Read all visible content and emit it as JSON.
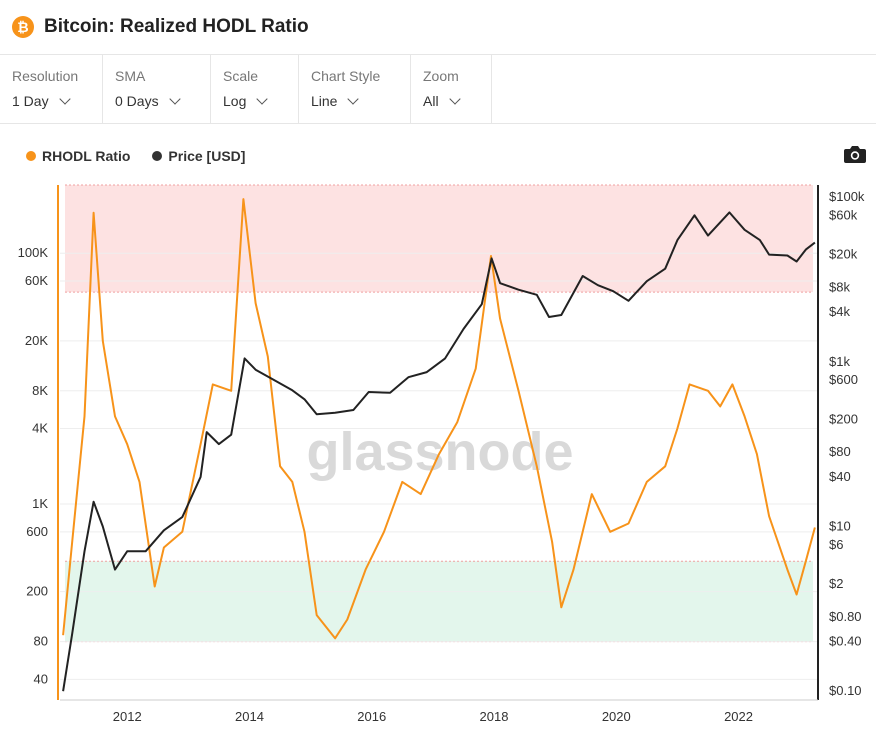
{
  "header": {
    "logo_glyph": "₿",
    "title": "Bitcoin: Realized HODL Ratio"
  },
  "controls": [
    {
      "label": "Resolution",
      "value": "1 Day"
    },
    {
      "label": "SMA",
      "value": "0 Days"
    },
    {
      "label": "Scale",
      "value": "Log"
    },
    {
      "label": "Chart Style",
      "value": "Line"
    },
    {
      "label": "Zoom",
      "value": "All"
    }
  ],
  "legend": [
    {
      "name": "RHODL Ratio",
      "color": "#f7931a"
    },
    {
      "name": "Price [USD]",
      "color": "#333333"
    }
  ],
  "icons": {
    "camera": "camera-icon",
    "logo": "bitcoin-logo-icon"
  },
  "watermark": "glassnode",
  "colors": {
    "rhodl": "#f7931a",
    "price": "#222222",
    "top_band": "#fde2e2",
    "bottom_band": "#e3f6ec"
  },
  "chart_data": {
    "type": "line",
    "x_ticks": [
      "2012",
      "2014",
      "2016",
      "2018",
      "2020",
      "2022"
    ],
    "y_left_scale": "log",
    "y_left_ticks": [
      "100K",
      "60K",
      "20K",
      "8K",
      "4K",
      "1K",
      "600",
      "200",
      "80",
      "40"
    ],
    "y_left_values": [
      100000,
      60000,
      20000,
      8000,
      4000,
      1000,
      600,
      200,
      80,
      40
    ],
    "y_right_scale": "log",
    "y_right_ticks": [
      "$100k",
      "$60k",
      "$20k",
      "$8k",
      "$4k",
      "$1k",
      "$600",
      "$200",
      "$80",
      "$40",
      "$10",
      "$6",
      "$2",
      "$0.80",
      "$0.40",
      "$0.10"
    ],
    "y_right_values": [
      100000,
      60000,
      20000,
      8000,
      4000,
      1000,
      600,
      200,
      80,
      40,
      10,
      6,
      2,
      0.8,
      0.4,
      0.1
    ],
    "top_band_rhodl": [
      49000,
      350000
    ],
    "bottom_band_rhodl": [
      80,
      350
    ],
    "series": [
      {
        "name": "RHODL Ratio",
        "axis": "left",
        "points": [
          [
            2010.95,
            90
          ],
          [
            2011.1,
            500
          ],
          [
            2011.3,
            5000
          ],
          [
            2011.45,
            210000
          ],
          [
            2011.6,
            20000
          ],
          [
            2011.8,
            5000
          ],
          [
            2012.0,
            3000
          ],
          [
            2012.2,
            1500
          ],
          [
            2012.45,
            220
          ],
          [
            2012.6,
            450
          ],
          [
            2012.9,
            600
          ],
          [
            2013.2,
            3000
          ],
          [
            2013.4,
            9000
          ],
          [
            2013.7,
            8000
          ],
          [
            2013.9,
            270000
          ],
          [
            2014.1,
            40000
          ],
          [
            2014.3,
            15000
          ],
          [
            2014.5,
            2000
          ],
          [
            2014.7,
            1500
          ],
          [
            2014.9,
            600
          ],
          [
            2015.1,
            130
          ],
          [
            2015.4,
            85
          ],
          [
            2015.6,
            120
          ],
          [
            2015.9,
            300
          ],
          [
            2016.2,
            600
          ],
          [
            2016.5,
            1500
          ],
          [
            2016.8,
            1200
          ],
          [
            2017.1,
            2500
          ],
          [
            2017.4,
            4500
          ],
          [
            2017.7,
            12000
          ],
          [
            2017.95,
            95000
          ],
          [
            2018.1,
            30000
          ],
          [
            2018.4,
            8000
          ],
          [
            2018.7,
            2000
          ],
          [
            2018.95,
            500
          ],
          [
            2019.1,
            150
          ],
          [
            2019.3,
            300
          ],
          [
            2019.6,
            1200
          ],
          [
            2019.9,
            600
          ],
          [
            2020.2,
            700
          ],
          [
            2020.5,
            1500
          ],
          [
            2020.8,
            2000
          ],
          [
            2021.0,
            4000
          ],
          [
            2021.2,
            9000
          ],
          [
            2021.5,
            8000
          ],
          [
            2021.7,
            6000
          ],
          [
            2021.9,
            9000
          ],
          [
            2022.1,
            5000
          ],
          [
            2022.3,
            2500
          ],
          [
            2022.5,
            800
          ],
          [
            2022.8,
            300
          ],
          [
            2022.95,
            190
          ],
          [
            2023.1,
            350
          ],
          [
            2023.25,
            650
          ]
        ]
      },
      {
        "name": "Price [USD]",
        "axis": "right",
        "points": [
          [
            2010.95,
            0.1
          ],
          [
            2011.1,
            0.5
          ],
          [
            2011.3,
            5
          ],
          [
            2011.45,
            20
          ],
          [
            2011.6,
            10
          ],
          [
            2011.8,
            3
          ],
          [
            2012.0,
            5
          ],
          [
            2012.3,
            5
          ],
          [
            2012.6,
            9
          ],
          [
            2012.9,
            13
          ],
          [
            2013.2,
            40
          ],
          [
            2013.3,
            140
          ],
          [
            2013.5,
            100
          ],
          [
            2013.7,
            130
          ],
          [
            2013.92,
            1100
          ],
          [
            2014.1,
            800
          ],
          [
            2014.4,
            600
          ],
          [
            2014.7,
            450
          ],
          [
            2014.9,
            350
          ],
          [
            2015.1,
            230
          ],
          [
            2015.4,
            240
          ],
          [
            2015.7,
            260
          ],
          [
            2015.95,
            430
          ],
          [
            2016.3,
            420
          ],
          [
            2016.6,
            650
          ],
          [
            2016.9,
            750
          ],
          [
            2017.2,
            1100
          ],
          [
            2017.5,
            2500
          ],
          [
            2017.8,
            5000
          ],
          [
            2017.96,
            18000
          ],
          [
            2018.1,
            9000
          ],
          [
            2018.4,
            7500
          ],
          [
            2018.7,
            6500
          ],
          [
            2018.9,
            3500
          ],
          [
            2019.1,
            3700
          ],
          [
            2019.45,
            11000
          ],
          [
            2019.7,
            8500
          ],
          [
            2019.95,
            7200
          ],
          [
            2020.2,
            5500
          ],
          [
            2020.5,
            9500
          ],
          [
            2020.8,
            13500
          ],
          [
            2021.0,
            30000
          ],
          [
            2021.28,
            60000
          ],
          [
            2021.5,
            34000
          ],
          [
            2021.85,
            65000
          ],
          [
            2022.1,
            40000
          ],
          [
            2022.35,
            30000
          ],
          [
            2022.5,
            20000
          ],
          [
            2022.8,
            19500
          ],
          [
            2022.95,
            16500
          ],
          [
            2023.1,
            23000
          ],
          [
            2023.25,
            28000
          ]
        ]
      }
    ]
  }
}
